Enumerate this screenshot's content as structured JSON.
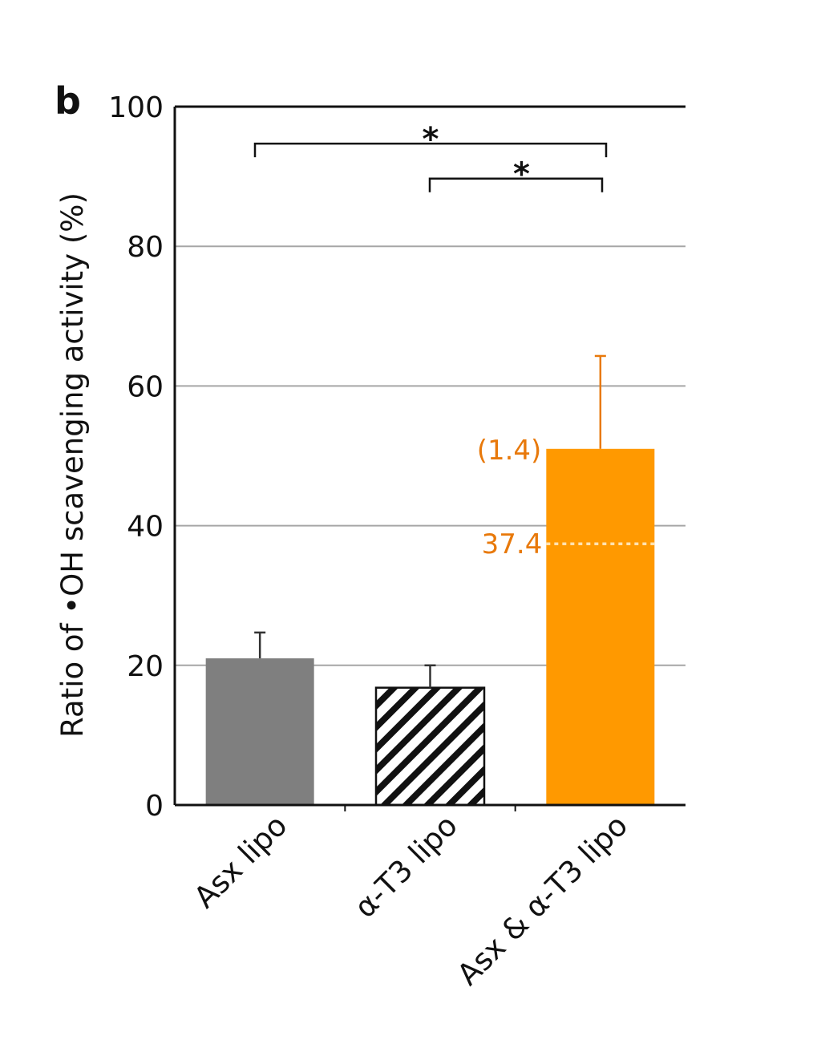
{
  "panel_label": "b",
  "chart_data": {
    "type": "bar",
    "ylabel": "Ratio of •OH scavenging activity (%)",
    "xlabel": "",
    "ylim": [
      0,
      100
    ],
    "yticks": [
      0,
      20,
      40,
      60,
      80,
      100
    ],
    "gridlines": [
      20,
      40,
      60,
      80
    ],
    "categories": [
      "Asx lipo",
      "α-T3 lipo",
      "Asx & α-T3 lipo"
    ],
    "values": [
      21.0,
      16.8,
      51.0
    ],
    "errors": [
      3.7,
      3.2,
      13.3
    ],
    "fills": [
      "solid-gray",
      "diagonal-hatch",
      "solid-orange"
    ],
    "colors": {
      "gray": "#7f7f7f",
      "orange": "#ff9900",
      "annotation": "#e8790b",
      "grid": "#a6a6a6",
      "axis": "#111111"
    },
    "annotations": [
      {
        "text": "(1.4)",
        "y": 51.0,
        "category": 2
      },
      {
        "text": "37.4",
        "y": 37.4,
        "category": 2,
        "style": "dotted-line"
      }
    ],
    "significance": [
      {
        "from": 0,
        "to": 2,
        "y": 94.7,
        "label": "*"
      },
      {
        "from": 1,
        "to": 2,
        "y": 89.7,
        "label": "*"
      }
    ]
  }
}
